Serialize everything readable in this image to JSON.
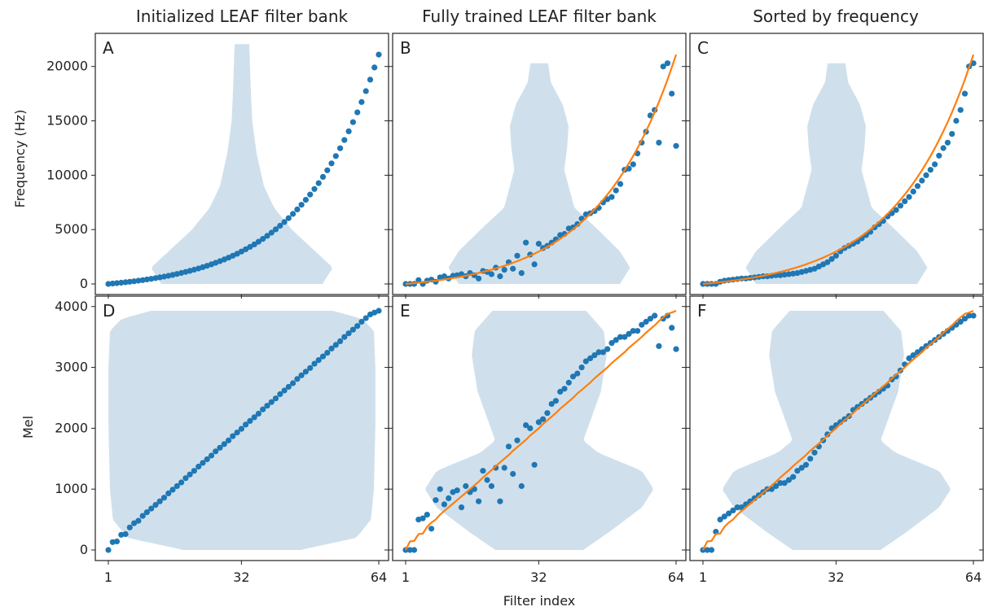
{
  "column_titles": [
    "Initialized LEAF filter bank",
    "Fully trained LEAF filter bank",
    "Sorted by frequency"
  ],
  "xlabel": "Filter index",
  "ylabel_top": "Frequency (Hz)",
  "ylabel_bottom": "Mel",
  "x_ticks": [
    "1",
    "32",
    "64"
  ],
  "y_ticks_top": [
    "0",
    "5000",
    "10000",
    "15000",
    "20000"
  ],
  "y_ticks_bottom": [
    "0",
    "1000",
    "2000",
    "3000",
    "4000"
  ],
  "colors": {
    "violin": "#cfe0ec",
    "points": "#1f77b4",
    "curve": "#ff7f0e",
    "axes": "#222222"
  },
  "chart_data": [
    {
      "panel": "A",
      "type": "scatter",
      "scale": "Hz",
      "title": "Initialized LEAF filter bank",
      "ylabel": "Frequency (Hz)",
      "xlabel": "Filter index",
      "xlim": [
        1,
        64
      ],
      "ylim": [
        0,
        22000
      ],
      "violin": {
        "ymin": 0,
        "ymax": 22050,
        "width_profile": [
          [
            0,
            0.55
          ],
          [
            1500,
            0.62
          ],
          [
            3000,
            0.5
          ],
          [
            5000,
            0.34
          ],
          [
            7000,
            0.22
          ],
          [
            9000,
            0.15
          ],
          [
            12000,
            0.1
          ],
          [
            15000,
            0.07
          ],
          [
            18000,
            0.06
          ],
          [
            20000,
            0.055
          ],
          [
            22050,
            0.05
          ]
        ]
      },
      "series": [
        {
          "kind": "points",
          "values": [
            0,
            35,
            73,
            113,
            156,
            201,
            249,
            300,
            354,
            411,
            472,
            536,
            604,
            676,
            752,
            833,
            918,
            1008,
            1104,
            1205,
            1311,
            1424,
            1543,
            1669,
            1802,
            1943,
            2092,
            2250,
            2416,
            2593,
            2779,
            2976,
            3185,
            3405,
            3638,
            3885,
            4145,
            4421,
            4712,
            5021,
            5347,
            5692,
            6057,
            6443,
            6851,
            7283,
            7740,
            8223,
            8734,
            9274,
            9846,
            10450,
            11090,
            11767,
            12482,
            13239,
            14040,
            14887,
            15783,
            16730,
            17732,
            18792,
            19913,
            21098
          ]
        }
      ]
    },
    {
      "panel": "B",
      "type": "scatter",
      "scale": "Hz",
      "title": "Fully trained LEAF filter bank",
      "xlim": [
        1,
        64
      ],
      "ylim": [
        0,
        22000
      ],
      "violin": {
        "ymin": 0,
        "ymax": 20300,
        "width_profile": [
          [
            0,
            0.55
          ],
          [
            1500,
            0.62
          ],
          [
            3000,
            0.55
          ],
          [
            5000,
            0.4
          ],
          [
            7000,
            0.24
          ],
          [
            9000,
            0.2
          ],
          [
            10500,
            0.17
          ],
          [
            12500,
            0.19
          ],
          [
            14500,
            0.2
          ],
          [
            16500,
            0.16
          ],
          [
            18500,
            0.08
          ],
          [
            20300,
            0.06
          ]
        ]
      },
      "series": [
        {
          "kind": "points",
          "values": [
            0,
            0,
            0,
            350,
            0,
            300,
            400,
            200,
            600,
            700,
            500,
            750,
            800,
            900,
            700,
            1000,
            800,
            500,
            1200,
            1100,
            900,
            1500,
            700,
            1300,
            2000,
            1400,
            2600,
            1000,
            3800,
            2700,
            1800,
            3700,
            3300,
            3500,
            3800,
            4100,
            4500,
            4600,
            5100,
            5200,
            5500,
            6000,
            6400,
            6500,
            6700,
            7000,
            7500,
            7800,
            8000,
            8600,
            9200,
            10500,
            10600,
            11000,
            12000,
            13000,
            14000,
            15500,
            16000,
            13000,
            20000,
            20300,
            17500,
            12700
          ]
        },
        {
          "kind": "curve",
          "values": [
            0,
            35,
            73,
            113,
            156,
            201,
            249,
            300,
            354,
            411,
            472,
            536,
            604,
            676,
            752,
            833,
            918,
            1008,
            1104,
            1205,
            1311,
            1424,
            1543,
            1669,
            1802,
            1943,
            2092,
            2250,
            2416,
            2593,
            2779,
            2976,
            3185,
            3405,
            3638,
            3885,
            4145,
            4421,
            4712,
            5021,
            5347,
            5692,
            6057,
            6443,
            6851,
            7283,
            7740,
            8223,
            8734,
            9274,
            9846,
            10450,
            11090,
            11767,
            12482,
            13239,
            14040,
            14887,
            15783,
            16730,
            17732,
            18792,
            19913,
            21098
          ]
        }
      ]
    },
    {
      "panel": "C",
      "type": "scatter",
      "scale": "Hz",
      "title": "Sorted by frequency",
      "xlim": [
        1,
        64
      ],
      "ylim": [
        0,
        22000
      ],
      "violin": {
        "ymin": 0,
        "ymax": 20300,
        "width_profile": [
          [
            0,
            0.55
          ],
          [
            1500,
            0.62
          ],
          [
            3000,
            0.55
          ],
          [
            5000,
            0.4
          ],
          [
            7000,
            0.24
          ],
          [
            9000,
            0.2
          ],
          [
            10500,
            0.17
          ],
          [
            12500,
            0.19
          ],
          [
            14500,
            0.2
          ],
          [
            16500,
            0.16
          ],
          [
            18500,
            0.08
          ],
          [
            20300,
            0.06
          ]
        ]
      },
      "series": [
        {
          "kind": "points",
          "values": [
            0,
            0,
            0,
            0,
            200,
            300,
            350,
            400,
            450,
            500,
            500,
            550,
            600,
            650,
            700,
            700,
            750,
            800,
            800,
            850,
            900,
            950,
            1000,
            1100,
            1200,
            1300,
            1400,
            1600,
            1800,
            2000,
            2300,
            2600,
            3000,
            3300,
            3500,
            3700,
            3900,
            4200,
            4500,
            4800,
            5200,
            5500,
            5800,
            6200,
            6500,
            6800,
            7200,
            7600,
            8000,
            8500,
            9000,
            9500,
            10000,
            10500,
            11000,
            11800,
            12500,
            13000,
            13800,
            15000,
            16000,
            17500,
            20000,
            20300
          ]
        },
        {
          "kind": "curve",
          "values": [
            0,
            35,
            73,
            113,
            156,
            201,
            249,
            300,
            354,
            411,
            472,
            536,
            604,
            676,
            752,
            833,
            918,
            1008,
            1104,
            1205,
            1311,
            1424,
            1543,
            1669,
            1802,
            1943,
            2092,
            2250,
            2416,
            2593,
            2779,
            2976,
            3185,
            3405,
            3638,
            3885,
            4145,
            4421,
            4712,
            5021,
            5347,
            5692,
            6057,
            6443,
            6851,
            7283,
            7740,
            8223,
            8734,
            9274,
            9846,
            10450,
            11090,
            11767,
            12482,
            13239,
            14040,
            14887,
            15783,
            16730,
            17732,
            18792,
            19913,
            21098
          ]
        }
      ]
    },
    {
      "panel": "D",
      "type": "scatter",
      "scale": "Mel",
      "ylabel": "Mel",
      "xlabel": "Filter index",
      "xlim": [
        1,
        64
      ],
      "ylim": [
        0,
        4000
      ],
      "violin": {
        "ymin": 0,
        "ymax": 3930,
        "width_profile": [
          [
            0,
            0.4
          ],
          [
            200,
            0.78
          ],
          [
            500,
            0.88
          ],
          [
            1000,
            0.9
          ],
          [
            2000,
            0.91
          ],
          [
            3000,
            0.91
          ],
          [
            3600,
            0.9
          ],
          [
            3800,
            0.82
          ],
          [
            3930,
            0.62
          ]
        ]
      },
      "series": [
        {
          "kind": "points",
          "values": [
            0,
            130,
            140,
            250,
            260,
            370,
            440,
            480,
            560,
            620,
            680,
            740,
            800,
            860,
            930,
            990,
            1050,
            1110,
            1180,
            1240,
            1300,
            1370,
            1430,
            1490,
            1550,
            1620,
            1680,
            1740,
            1800,
            1870,
            1930,
            1990,
            2060,
            2120,
            2180,
            2240,
            2310,
            2370,
            2430,
            2490,
            2560,
            2620,
            2680,
            2740,
            2810,
            2870,
            2930,
            2990,
            3060,
            3120,
            3180,
            3240,
            3310,
            3370,
            3430,
            3500,
            3560,
            3620,
            3680,
            3750,
            3810,
            3870,
            3900,
            3930
          ]
        }
      ]
    },
    {
      "panel": "E",
      "type": "scatter",
      "scale": "Mel",
      "xlim": [
        1,
        64
      ],
      "ylim": [
        0,
        4000
      ],
      "violin": {
        "ymin": 0,
        "ymax": 3930,
        "width_profile": [
          [
            0,
            0.3
          ],
          [
            300,
            0.48
          ],
          [
            700,
            0.7
          ],
          [
            1000,
            0.78
          ],
          [
            1300,
            0.7
          ],
          [
            1600,
            0.4
          ],
          [
            1800,
            0.3
          ],
          [
            2200,
            0.36
          ],
          [
            2600,
            0.42
          ],
          [
            3200,
            0.46
          ],
          [
            3600,
            0.44
          ],
          [
            3930,
            0.32
          ]
        ]
      },
      "series": [
        {
          "kind": "points",
          "values": [
            0,
            0,
            0,
            500,
            520,
            580,
            350,
            820,
            1000,
            750,
            850,
            950,
            980,
            700,
            1050,
            950,
            1000,
            800,
            1300,
            1150,
            1050,
            1350,
            800,
            1350,
            1700,
            1250,
            1800,
            1050,
            2050,
            2000,
            1400,
            2100,
            2150,
            2250,
            2400,
            2450,
            2600,
            2650,
            2750,
            2850,
            2900,
            3000,
            3100,
            3150,
            3200,
            3250,
            3250,
            3300,
            3400,
            3450,
            3500,
            3500,
            3550,
            3600,
            3600,
            3700,
            3750,
            3800,
            3850,
            3350,
            3800,
            3850,
            3650,
            3300
          ]
        },
        {
          "kind": "curve",
          "values": [
            0,
            140,
            150,
            260,
            270,
            380,
            450,
            500,
            580,
            640,
            700,
            760,
            820,
            880,
            940,
            1000,
            1060,
            1120,
            1190,
            1250,
            1310,
            1380,
            1440,
            1500,
            1560,
            1630,
            1690,
            1750,
            1810,
            1880,
            1940,
            2000,
            2070,
            2130,
            2190,
            2250,
            2320,
            2380,
            2440,
            2500,
            2570,
            2630,
            2690,
            2750,
            2820,
            2880,
            2940,
            3000,
            3070,
            3130,
            3190,
            3250,
            3320,
            3380,
            3440,
            3500,
            3570,
            3630,
            3690,
            3760,
            3820,
            3880,
            3900,
            3930
          ]
        }
      ]
    },
    {
      "panel": "F",
      "type": "scatter",
      "scale": "Mel",
      "xlim": [
        1,
        64
      ],
      "ylim": [
        0,
        4000
      ],
      "violin": {
        "ymin": 0,
        "ymax": 3930,
        "width_profile": [
          [
            0,
            0.3
          ],
          [
            300,
            0.48
          ],
          [
            700,
            0.7
          ],
          [
            1000,
            0.78
          ],
          [
            1300,
            0.7
          ],
          [
            1600,
            0.4
          ],
          [
            1800,
            0.3
          ],
          [
            2200,
            0.36
          ],
          [
            2600,
            0.42
          ],
          [
            3200,
            0.46
          ],
          [
            3600,
            0.44
          ],
          [
            3930,
            0.32
          ]
        ]
      },
      "series": [
        {
          "kind": "points",
          "values": [
            0,
            0,
            0,
            300,
            500,
            550,
            600,
            650,
            700,
            700,
            750,
            800,
            850,
            900,
            950,
            1000,
            1000,
            1050,
            1100,
            1100,
            1150,
            1200,
            1300,
            1350,
            1400,
            1500,
            1600,
            1700,
            1800,
            1900,
            2000,
            2050,
            2100,
            2150,
            2200,
            2300,
            2350,
            2400,
            2450,
            2500,
            2550,
            2600,
            2650,
            2700,
            2800,
            2850,
            2950,
            3050,
            3150,
            3200,
            3250,
            3300,
            3350,
            3400,
            3450,
            3500,
            3550,
            3600,
            3650,
            3700,
            3750,
            3800,
            3850,
            3850
          ]
        },
        {
          "kind": "curve",
          "values": [
            0,
            140,
            150,
            260,
            270,
            380,
            450,
            500,
            580,
            640,
            700,
            760,
            820,
            880,
            940,
            1000,
            1060,
            1120,
            1190,
            1250,
            1310,
            1380,
            1440,
            1500,
            1560,
            1630,
            1690,
            1750,
            1810,
            1880,
            1940,
            2000,
            2070,
            2130,
            2190,
            2250,
            2320,
            2380,
            2440,
            2500,
            2570,
            2630,
            2690,
            2750,
            2820,
            2880,
            2940,
            3000,
            3070,
            3130,
            3190,
            3250,
            3320,
            3380,
            3440,
            3500,
            3570,
            3630,
            3690,
            3760,
            3820,
            3880,
            3900,
            3930
          ]
        }
      ]
    }
  ]
}
